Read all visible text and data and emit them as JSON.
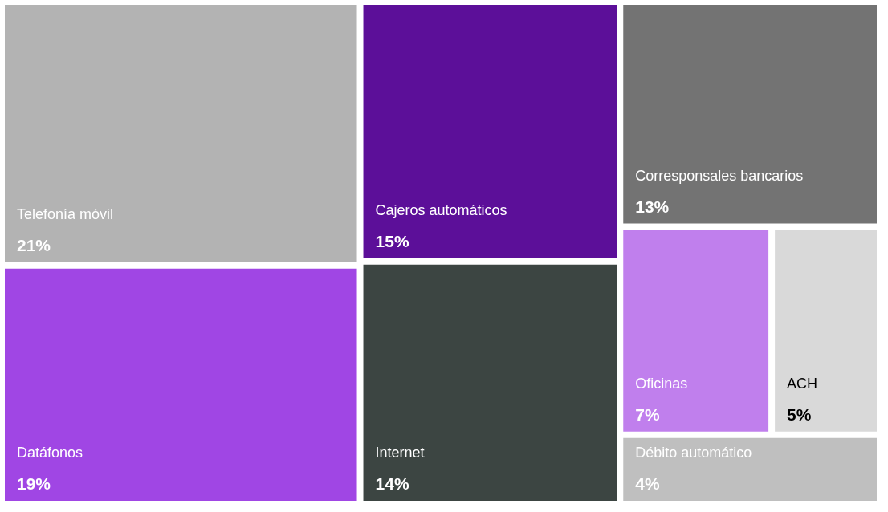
{
  "chart_data": {
    "type": "other",
    "categories": [
      "Telefonía móvil",
      "Datáfonos",
      "Cajeros automáticos",
      "Internet",
      "Corresponsales bancarios",
      "Oficinas",
      "ACH",
      "Débito automático"
    ],
    "values": [
      21,
      19,
      15,
      14,
      13,
      7,
      5,
      4
    ],
    "value_labels": [
      "21%",
      "19%",
      "15%",
      "14%",
      "13%",
      "7%",
      "5%",
      "4%"
    ],
    "colors": [
      "#b3b3b3",
      "#a046e4",
      "#5c0f99",
      "#3c4542",
      "#737373",
      "#c07fed",
      "#d9d9d9",
      "#bfbfbf"
    ]
  }
}
